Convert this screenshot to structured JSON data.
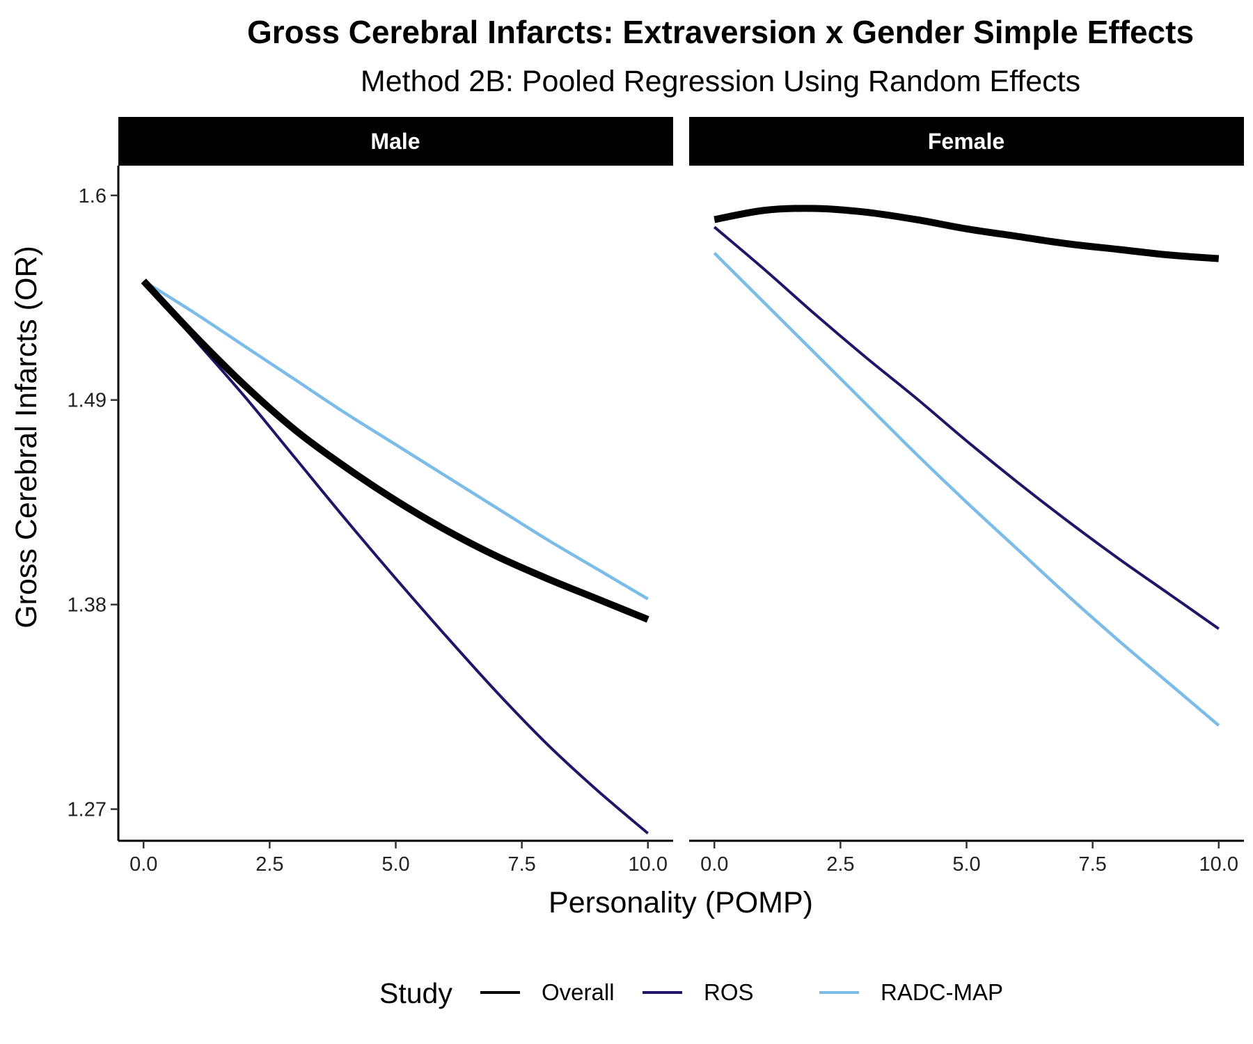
{
  "chart_data": {
    "type": "line",
    "title": "Gross Cerebral Infarcts: Extraversion x Gender Simple Effects",
    "subtitle": "Method 2B: Pooled Regression Using Random Effects",
    "xlabel": "Personality (POMP)",
    "ylabel": "Gross Cerebral Infarcts (OR)",
    "xlim": [
      -0.5,
      10.5
    ],
    "ylim": [
      1.253,
      1.616
    ],
    "x_ticks": [
      "0.0",
      "2.5",
      "5.0",
      "7.5",
      "10.0"
    ],
    "y_ticks": [
      "1.27",
      "1.38",
      "1.49",
      "1.6"
    ],
    "grid": false,
    "legend": {
      "title": "Study",
      "position": "bottom",
      "entries": [
        "Overall",
        "ROS",
        "RADC-MAP"
      ]
    },
    "colors": {
      "Overall": "#000000",
      "ROS": "#221466",
      "RADC-MAP": "#7CBCE8",
      "strip_bg": "#000000",
      "strip_text": "#ffffff"
    },
    "panels": [
      {
        "label": "Male",
        "series": [
          {
            "name": "Overall",
            "x": [
              0,
              1,
              2,
              3,
              4,
              5,
              6,
              7,
              8,
              9,
              10
            ],
            "y": [
              1.554,
              1.525,
              1.498,
              1.474,
              1.454,
              1.436,
              1.42,
              1.406,
              1.394,
              1.383,
              1.372
            ]
          },
          {
            "name": "ROS",
            "x": [
              0,
              1,
              2,
              3,
              4,
              5,
              6,
              7,
              8,
              9,
              10
            ],
            "y": [
              1.554,
              1.523,
              1.492,
              1.459,
              1.426,
              1.394,
              1.363,
              1.333,
              1.305,
              1.28,
              1.257
            ]
          },
          {
            "name": "RADC-MAP",
            "x": [
              0,
              1,
              2,
              3,
              4,
              5,
              6,
              7,
              8,
              9,
              10
            ],
            "y": [
              1.554,
              1.537,
              1.519,
              1.501,
              1.483,
              1.466,
              1.449,
              1.432,
              1.415,
              1.399,
              1.383
            ]
          }
        ]
      },
      {
        "label": "Female",
        "series": [
          {
            "name": "Overall",
            "x": [
              0,
              1,
              2,
              3,
              4,
              5,
              6,
              7,
              8,
              9,
              10
            ],
            "y": [
              1.587,
              1.592,
              1.593,
              1.591,
              1.587,
              1.582,
              1.578,
              1.574,
              1.571,
              1.568,
              1.566
            ]
          },
          {
            "name": "ROS",
            "x": [
              0,
              1,
              2,
              3,
              4,
              5,
              6,
              7,
              8,
              9,
              10
            ],
            "y": [
              1.583,
              1.56,
              1.536,
              1.513,
              1.491,
              1.468,
              1.446,
              1.425,
              1.405,
              1.386,
              1.367
            ]
          },
          {
            "name": "RADC-MAP",
            "x": [
              0,
              1,
              2,
              3,
              4,
              5,
              6,
              7,
              8,
              9,
              10
            ],
            "y": [
              1.569,
              1.542,
              1.515,
              1.488,
              1.461,
              1.435,
              1.41,
              1.385,
              1.361,
              1.338,
              1.315
            ]
          }
        ]
      }
    ]
  }
}
